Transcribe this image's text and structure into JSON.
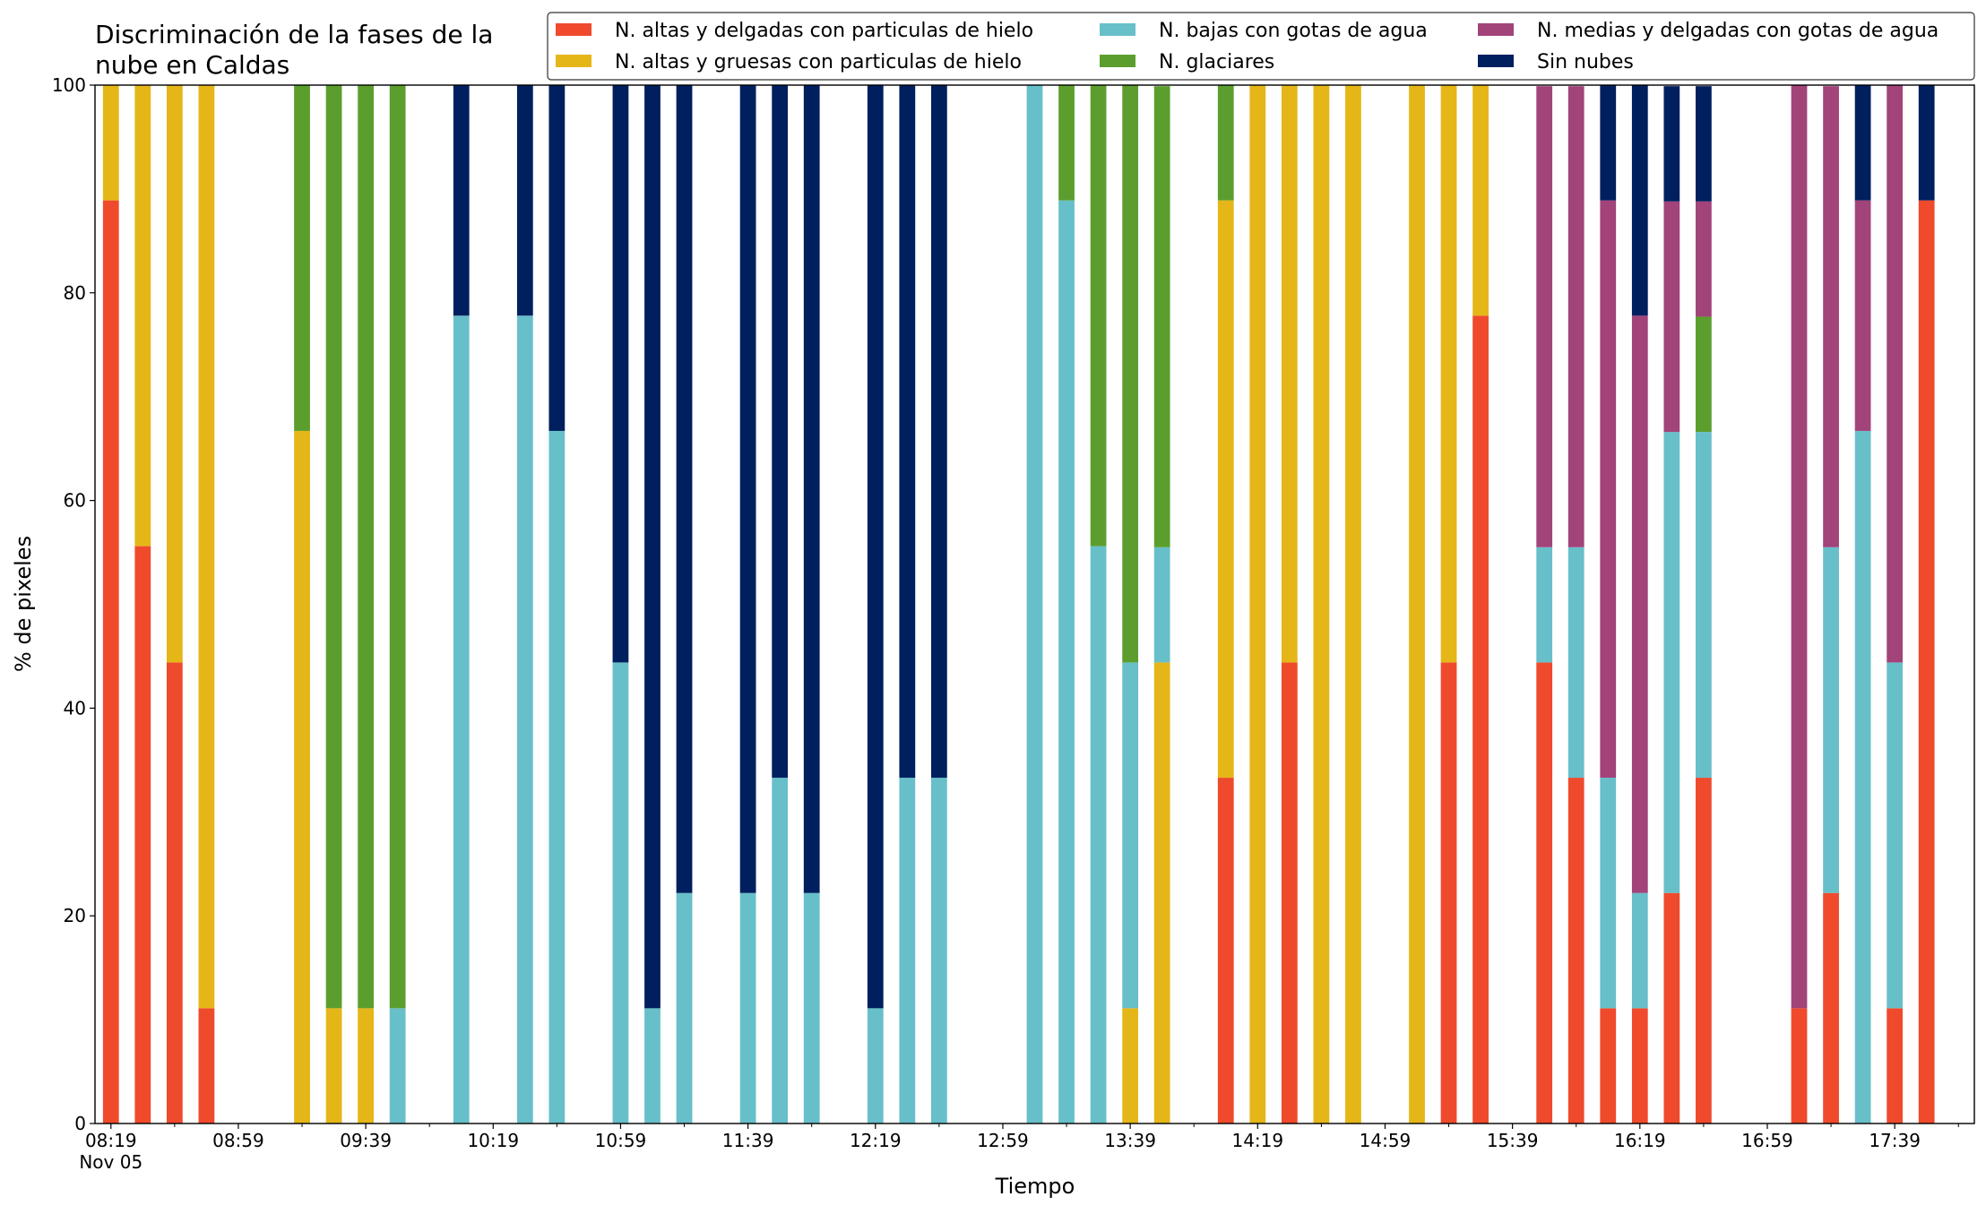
{
  "chart_data": {
    "type": "stacked_bar",
    "title": "Discriminación de la fases de la\nnube en Caldas",
    "xlabel": "Tiempo",
    "ylabel": "% de pixeles",
    "x": [
      "08:19",
      "08:29",
      "08:39",
      "08:49",
      "09:19",
      "09:29",
      "09:39",
      "09:49",
      "10:09",
      "10:29",
      "10:39",
      "10:59",
      "11:09",
      "11:19",
      "11:39",
      "11:49",
      "11:59",
      "12:19",
      "12:29",
      "12:39",
      "13:09",
      "13:19",
      "13:29",
      "13:39",
      "13:49",
      "14:09",
      "14:19",
      "14:29",
      "14:39",
      "14:49",
      "15:09",
      "15:19",
      "15:29",
      "15:49",
      "15:59",
      "16:09",
      "16:19",
      "16:29",
      "16:39",
      "17:09",
      "17:19",
      "17:29",
      "17:39",
      "17:49"
    ],
    "x_date_label": "Nov 05",
    "xlim": [
      "08:14",
      "18:04"
    ],
    "xticks": [
      "08:19",
      "08:59",
      "09:39",
      "10:19",
      "10:59",
      "11:39",
      "12:19",
      "12:59",
      "13:39",
      "14:19",
      "14:59",
      "15:39",
      "16:19",
      "16:59",
      "17:39"
    ],
    "xticks_minor": [
      "08:39",
      "09:19",
      "09:59",
      "10:39",
      "11:19",
      "11:59",
      "12:39",
      "13:19",
      "13:59",
      "14:39",
      "15:19",
      "15:59",
      "16:39",
      "17:19",
      "17:59"
    ],
    "ylim": [
      0,
      100
    ],
    "yticks": [
      0,
      20,
      40,
      60,
      80,
      100
    ],
    "legend": "top-right",
    "series": [
      {
        "name": "N. altas y delgadas con particulas de hielo",
        "color": "#ef4a2c",
        "values": [
          88.9,
          55.6,
          44.4,
          11.1,
          0,
          0,
          0,
          0,
          0,
          0,
          0,
          0,
          0,
          0,
          0,
          0,
          0,
          0,
          0,
          0,
          0,
          0,
          0,
          0,
          0,
          33.3,
          0,
          44.4,
          0,
          0,
          0,
          44.4,
          77.8,
          44.4,
          33.3,
          11.1,
          11.1,
          22.2,
          33.3,
          11.1,
          22.2,
          0,
          11.1,
          88.9
        ]
      },
      {
        "name": "N. altas y gruesas con particulas de hielo",
        "color": "#e5b618",
        "values": [
          11.1,
          44.4,
          55.6,
          88.9,
          66.7,
          11.1,
          11.1,
          0,
          0,
          0,
          0,
          0,
          0,
          0,
          0,
          0,
          0,
          0,
          0,
          0,
          0,
          0,
          0,
          11.1,
          44.4,
          55.6,
          100,
          55.6,
          100,
          100,
          100,
          55.6,
          22.2,
          0,
          0,
          0,
          0,
          0,
          0,
          0,
          0,
          0,
          0,
          0
        ]
      },
      {
        "name": "N. bajas con gotas de agua",
        "color": "#67bfca",
        "values": [
          0,
          0,
          0,
          0,
          0,
          0,
          0,
          11.1,
          77.8,
          77.8,
          66.7,
          44.4,
          11.1,
          22.2,
          22.2,
          33.3,
          22.2,
          11.1,
          33.3,
          33.3,
          100,
          88.9,
          55.6,
          33.3,
          11.1,
          0,
          0,
          0,
          0,
          0,
          0,
          0,
          0,
          11.1,
          22.2,
          22.2,
          11.1,
          44.4,
          33.3,
          0,
          33.3,
          66.7,
          33.3,
          0
        ]
      },
      {
        "name": "N. glaciares",
        "color": "#5c9e2e",
        "values": [
          0,
          0,
          0,
          0,
          33.3,
          88.9,
          88.9,
          88.9,
          0,
          0,
          0,
          0,
          0,
          0,
          0,
          0,
          0,
          0,
          0,
          0,
          0,
          11.1,
          44.4,
          55.6,
          44.4,
          11.1,
          0,
          0,
          0,
          0,
          0,
          0,
          0,
          0,
          0,
          0,
          0,
          0,
          11.1,
          0,
          0,
          0,
          0,
          0
        ]
      },
      {
        "name": "N. medias y delgadas con gotas de agua",
        "color": "#a2437a",
        "values": [
          0,
          0,
          0,
          0,
          0,
          0,
          0,
          0,
          0,
          0,
          0,
          0,
          0,
          0,
          0,
          0,
          0,
          0,
          0,
          0,
          0,
          0,
          0,
          0,
          0,
          0,
          0,
          0,
          0,
          0,
          0,
          0,
          0,
          44.4,
          44.4,
          55.6,
          55.6,
          22.2,
          11.1,
          88.9,
          44.4,
          22.2,
          55.6,
          0
        ]
      },
      {
        "name": "Sin nubes",
        "color": "#001f5f",
        "values": [
          0,
          0,
          0,
          0,
          0,
          0,
          0,
          0,
          22.2,
          22.2,
          33.3,
          55.6,
          88.9,
          77.8,
          77.8,
          66.7,
          77.8,
          88.9,
          66.7,
          66.7,
          0,
          0,
          0,
          0,
          0,
          0,
          0,
          0,
          0,
          0,
          0,
          0,
          0,
          0,
          0,
          11.1,
          22.2,
          11.1,
          11.1,
          0,
          0,
          11.1,
          0,
          11.1
        ]
      }
    ]
  }
}
